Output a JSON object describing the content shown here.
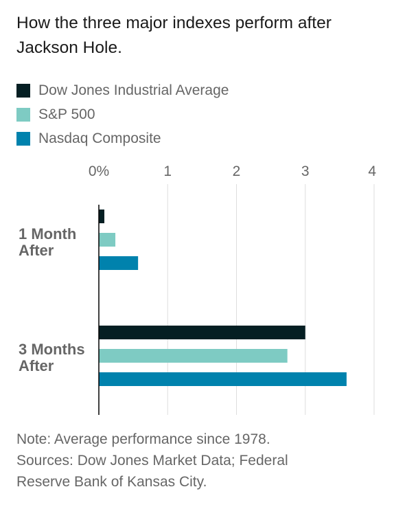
{
  "title": "How the three major indexes perform after Jackson Hole.",
  "legend": [
    {
      "label": "Dow Jones Industrial Average",
      "color": "#051f23"
    },
    {
      "label": "S&P 500",
      "color": "#7ecbc3"
    },
    {
      "label": "Nasdaq Composite",
      "color": "#0082ad"
    }
  ],
  "chart_data": {
    "type": "bar",
    "orientation": "horizontal",
    "categories": [
      [
        "1 Month",
        "After"
      ],
      [
        "3 Months",
        "After"
      ]
    ],
    "series": [
      {
        "name": "Dow Jones Industrial Average",
        "color": "#051f23",
        "values": [
          0.08,
          3.0
        ]
      },
      {
        "name": "S&P 500",
        "color": "#7ecbc3",
        "values": [
          0.24,
          2.74
        ]
      },
      {
        "name": "Nasdaq Composite",
        "color": "#0082ad",
        "values": [
          0.57,
          3.6
        ]
      }
    ],
    "ticks": [
      "0%",
      "1",
      "2",
      "3",
      "4"
    ],
    "xlim": [
      0,
      4
    ],
    "grid": true,
    "legend_position": "top"
  },
  "notes": {
    "note": "Note: Average performance since 1978.",
    "sources_line1": "Sources: Dow Jones Market Data; Federal",
    "sources_line2": "Reserve Bank of Kansas City."
  }
}
